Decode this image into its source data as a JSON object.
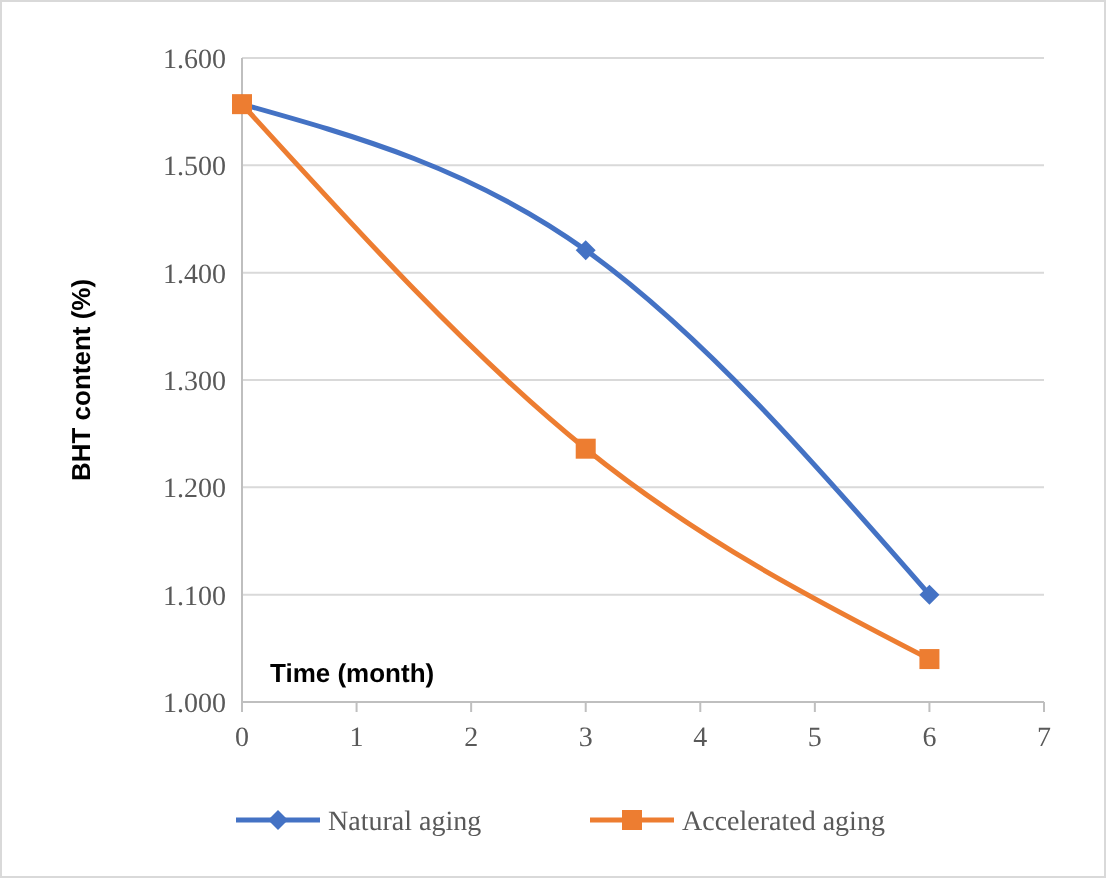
{
  "chart_data": {
    "type": "line",
    "xlabel": "Time (month)",
    "ylabel": "BHT content (%)",
    "x": [
      0,
      3,
      6
    ],
    "series": [
      {
        "name": "Natural aging",
        "color": "#4472c4",
        "values": [
          1.557,
          1.421,
          1.1
        ],
        "marker": "diamond"
      },
      {
        "name": "Accelerated aging",
        "color": "#ed7d31",
        "values": [
          1.557,
          1.236,
          1.04
        ],
        "marker": "square"
      }
    ],
    "xlim": [
      0,
      7
    ],
    "xticks": [
      0,
      1,
      2,
      3,
      4,
      5,
      6,
      7
    ],
    "ylim": [
      1.0,
      1.6
    ],
    "yticks": [
      {
        "value": 1.0,
        "label": "1.000"
      },
      {
        "value": 1.1,
        "label": "1.100"
      },
      {
        "value": 1.2,
        "label": "1.200"
      },
      {
        "value": 1.3,
        "label": "1.300"
      },
      {
        "value": 1.4,
        "label": "1.400"
      },
      {
        "value": 1.5,
        "label": "1.500"
      },
      {
        "value": 1.6,
        "label": "1.600"
      }
    ],
    "grid": "y",
    "legend": "bottom",
    "line_style": "solid"
  }
}
